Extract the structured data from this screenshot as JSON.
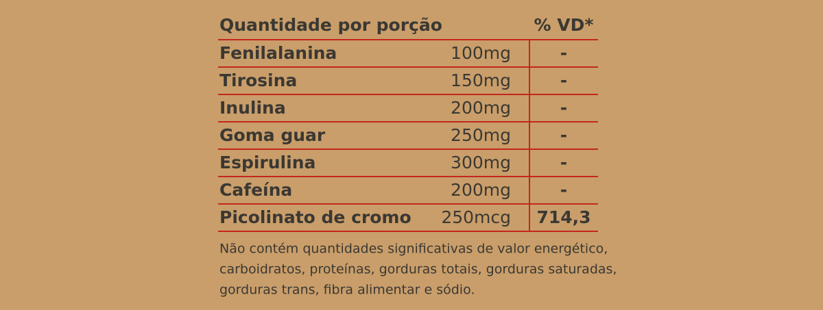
{
  "header": {
    "title": "Quantidade por porção",
    "vd": "% VD*"
  },
  "table": {
    "rows": [
      [
        "Fenilalanina",
        "100mg",
        "-"
      ],
      [
        "Tirosina",
        "150mg",
        "-"
      ],
      [
        "Inulina",
        "200mg",
        "-"
      ],
      [
        "Goma guar",
        "250mg",
        "-"
      ],
      [
        "Espirulina",
        "300mg",
        "-"
      ],
      [
        "Cafeína",
        "200mg",
        "-"
      ],
      [
        "Picolinato de cromo",
        "250mcg",
        "714,3"
      ]
    ]
  },
  "footnote": {
    "lines": [
      "Não contém quantidades significativas de valor energético,",
      "carboidratos, proteínas, gorduras totais, gorduras saturadas,",
      "gorduras trans, fibra alimentar e sódio."
    ]
  }
}
